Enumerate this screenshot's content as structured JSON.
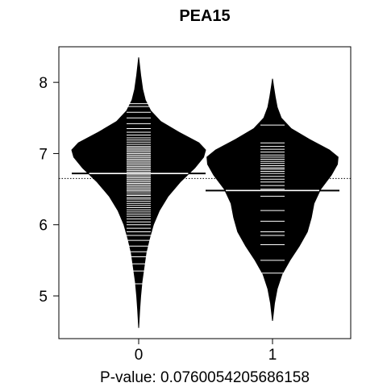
{
  "chart_data": {
    "type": "beanplot",
    "title": "PEA15",
    "xlabel": "P-value: 0.0760054205686158",
    "ylabel": "",
    "categories": [
      "0",
      "1"
    ],
    "ylim": [
      4.4,
      8.5
    ],
    "yticks": [
      5,
      6,
      7,
      8
    ],
    "overall_mean": 6.65,
    "grid": false,
    "legend": "none",
    "colors": {
      "bean": "#000000",
      "lines": "#ffffff",
      "axis": "#000000"
    },
    "groups": [
      {
        "label": "0",
        "mean": 6.72,
        "range": [
          4.55,
          8.35
        ],
        "density": [
          [
            4.55,
            0.0
          ],
          [
            4.8,
            0.015
          ],
          [
            5.0,
            0.03
          ],
          [
            5.2,
            0.05
          ],
          [
            5.4,
            0.08
          ],
          [
            5.6,
            0.11
          ],
          [
            5.8,
            0.16
          ],
          [
            6.0,
            0.22
          ],
          [
            6.2,
            0.31
          ],
          [
            6.4,
            0.44
          ],
          [
            6.6,
            0.62
          ],
          [
            6.8,
            0.84
          ],
          [
            6.95,
            0.97
          ],
          [
            7.05,
            1.0
          ],
          [
            7.15,
            0.9
          ],
          [
            7.3,
            0.6
          ],
          [
            7.45,
            0.33
          ],
          [
            7.6,
            0.18
          ],
          [
            7.75,
            0.1
          ],
          [
            7.9,
            0.06
          ],
          [
            8.1,
            0.03
          ],
          [
            8.35,
            0.0
          ]
        ],
        "observations": [
          5.17,
          5.35,
          5.45,
          5.55,
          5.62,
          5.7,
          5.78,
          5.85,
          5.9,
          5.95,
          6.0,
          6.04,
          6.08,
          6.12,
          6.15,
          6.18,
          6.21,
          6.24,
          6.27,
          6.3,
          6.33,
          6.36,
          6.38,
          6.41,
          6.43,
          6.46,
          6.48,
          6.5,
          6.52,
          6.54,
          6.56,
          6.58,
          6.6,
          6.62,
          6.64,
          6.66,
          6.68,
          6.7,
          6.72,
          6.74,
          6.76,
          6.78,
          6.8,
          6.82,
          6.84,
          6.86,
          6.88,
          6.9,
          6.92,
          6.94,
          6.96,
          6.98,
          7.0,
          7.02,
          7.04,
          7.06,
          7.08,
          7.1,
          7.13,
          7.16,
          7.19,
          7.22,
          7.26,
          7.3,
          7.35,
          7.42,
          7.5,
          7.58,
          7.66,
          7.7
        ]
      },
      {
        "label": "1",
        "mean": 6.48,
        "range": [
          4.65,
          8.05
        ],
        "density": [
          [
            4.65,
            0.0
          ],
          [
            4.9,
            0.03
          ],
          [
            5.1,
            0.07
          ],
          [
            5.3,
            0.14
          ],
          [
            5.5,
            0.26
          ],
          [
            5.7,
            0.4
          ],
          [
            5.9,
            0.52
          ],
          [
            6.1,
            0.58
          ],
          [
            6.3,
            0.62
          ],
          [
            6.5,
            0.72
          ],
          [
            6.7,
            0.88
          ],
          [
            6.85,
            0.97
          ],
          [
            6.95,
            0.98
          ],
          [
            7.05,
            0.85
          ],
          [
            7.2,
            0.55
          ],
          [
            7.35,
            0.28
          ],
          [
            7.5,
            0.13
          ],
          [
            7.65,
            0.07
          ],
          [
            7.8,
            0.04
          ],
          [
            7.95,
            0.015
          ],
          [
            8.05,
            0.0
          ]
        ],
        "observations": [
          5.32,
          5.5,
          5.72,
          5.85,
          5.9,
          6.05,
          6.2,
          6.4,
          6.5,
          6.55,
          6.6,
          6.64,
          6.68,
          6.72,
          6.75,
          6.78,
          6.8,
          6.83,
          6.86,
          6.89,
          6.92,
          6.95,
          6.98,
          7.02,
          7.06,
          7.1,
          7.15,
          7.4
        ]
      }
    ]
  }
}
